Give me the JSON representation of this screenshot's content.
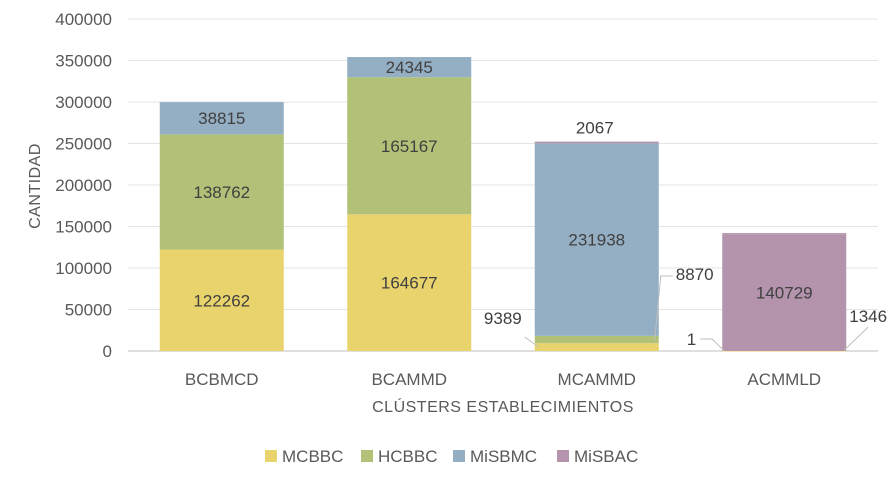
{
  "chart_data": {
    "type": "bar",
    "stacked": true,
    "title": "",
    "xlabel": "CLÚSTERS ESTABLECIMIENTOS",
    "ylabel": "CANTIDAD",
    "ylim": [
      0,
      400000
    ],
    "yticks": [
      "0",
      "50000",
      "100000",
      "150000",
      "200000",
      "250000",
      "300000",
      "350000",
      "400000"
    ],
    "grid": true,
    "legend_position": "bottom",
    "categories": [
      "BCBMCD",
      "BCAMMD",
      "MCAMMD",
      "ACMMLD"
    ],
    "series": [
      {
        "name": "MCBBC",
        "color": "#e9d36c",
        "values": [
          122262,
          164677,
          9389,
          1
        ],
        "labels": [
          "122262",
          "164677",
          "9389",
          "1"
        ]
      },
      {
        "name": "HCBBC",
        "color": "#b1c177",
        "values": [
          138762,
          165167,
          8870,
          0
        ],
        "labels": [
          "138762",
          "165167",
          "8870",
          ""
        ]
      },
      {
        "name": "MiSBMC",
        "color": "#94aec3",
        "values": [
          38815,
          24345,
          231938,
          0
        ],
        "labels": [
          "38815",
          "24345",
          "231938",
          ""
        ]
      },
      {
        "name": "MiSBAC",
        "color": "#b493ad",
        "values": [
          0,
          0,
          2067,
          140729
        ],
        "labels": [
          "",
          "",
          "2067",
          "140729"
        ]
      },
      {
        "name": "",
        "color": "#b493ad",
        "values": [
          0,
          0,
          0,
          1346
        ],
        "labels": [
          "",
          "",
          "",
          "1346"
        ],
        "legend": false
      }
    ]
  }
}
